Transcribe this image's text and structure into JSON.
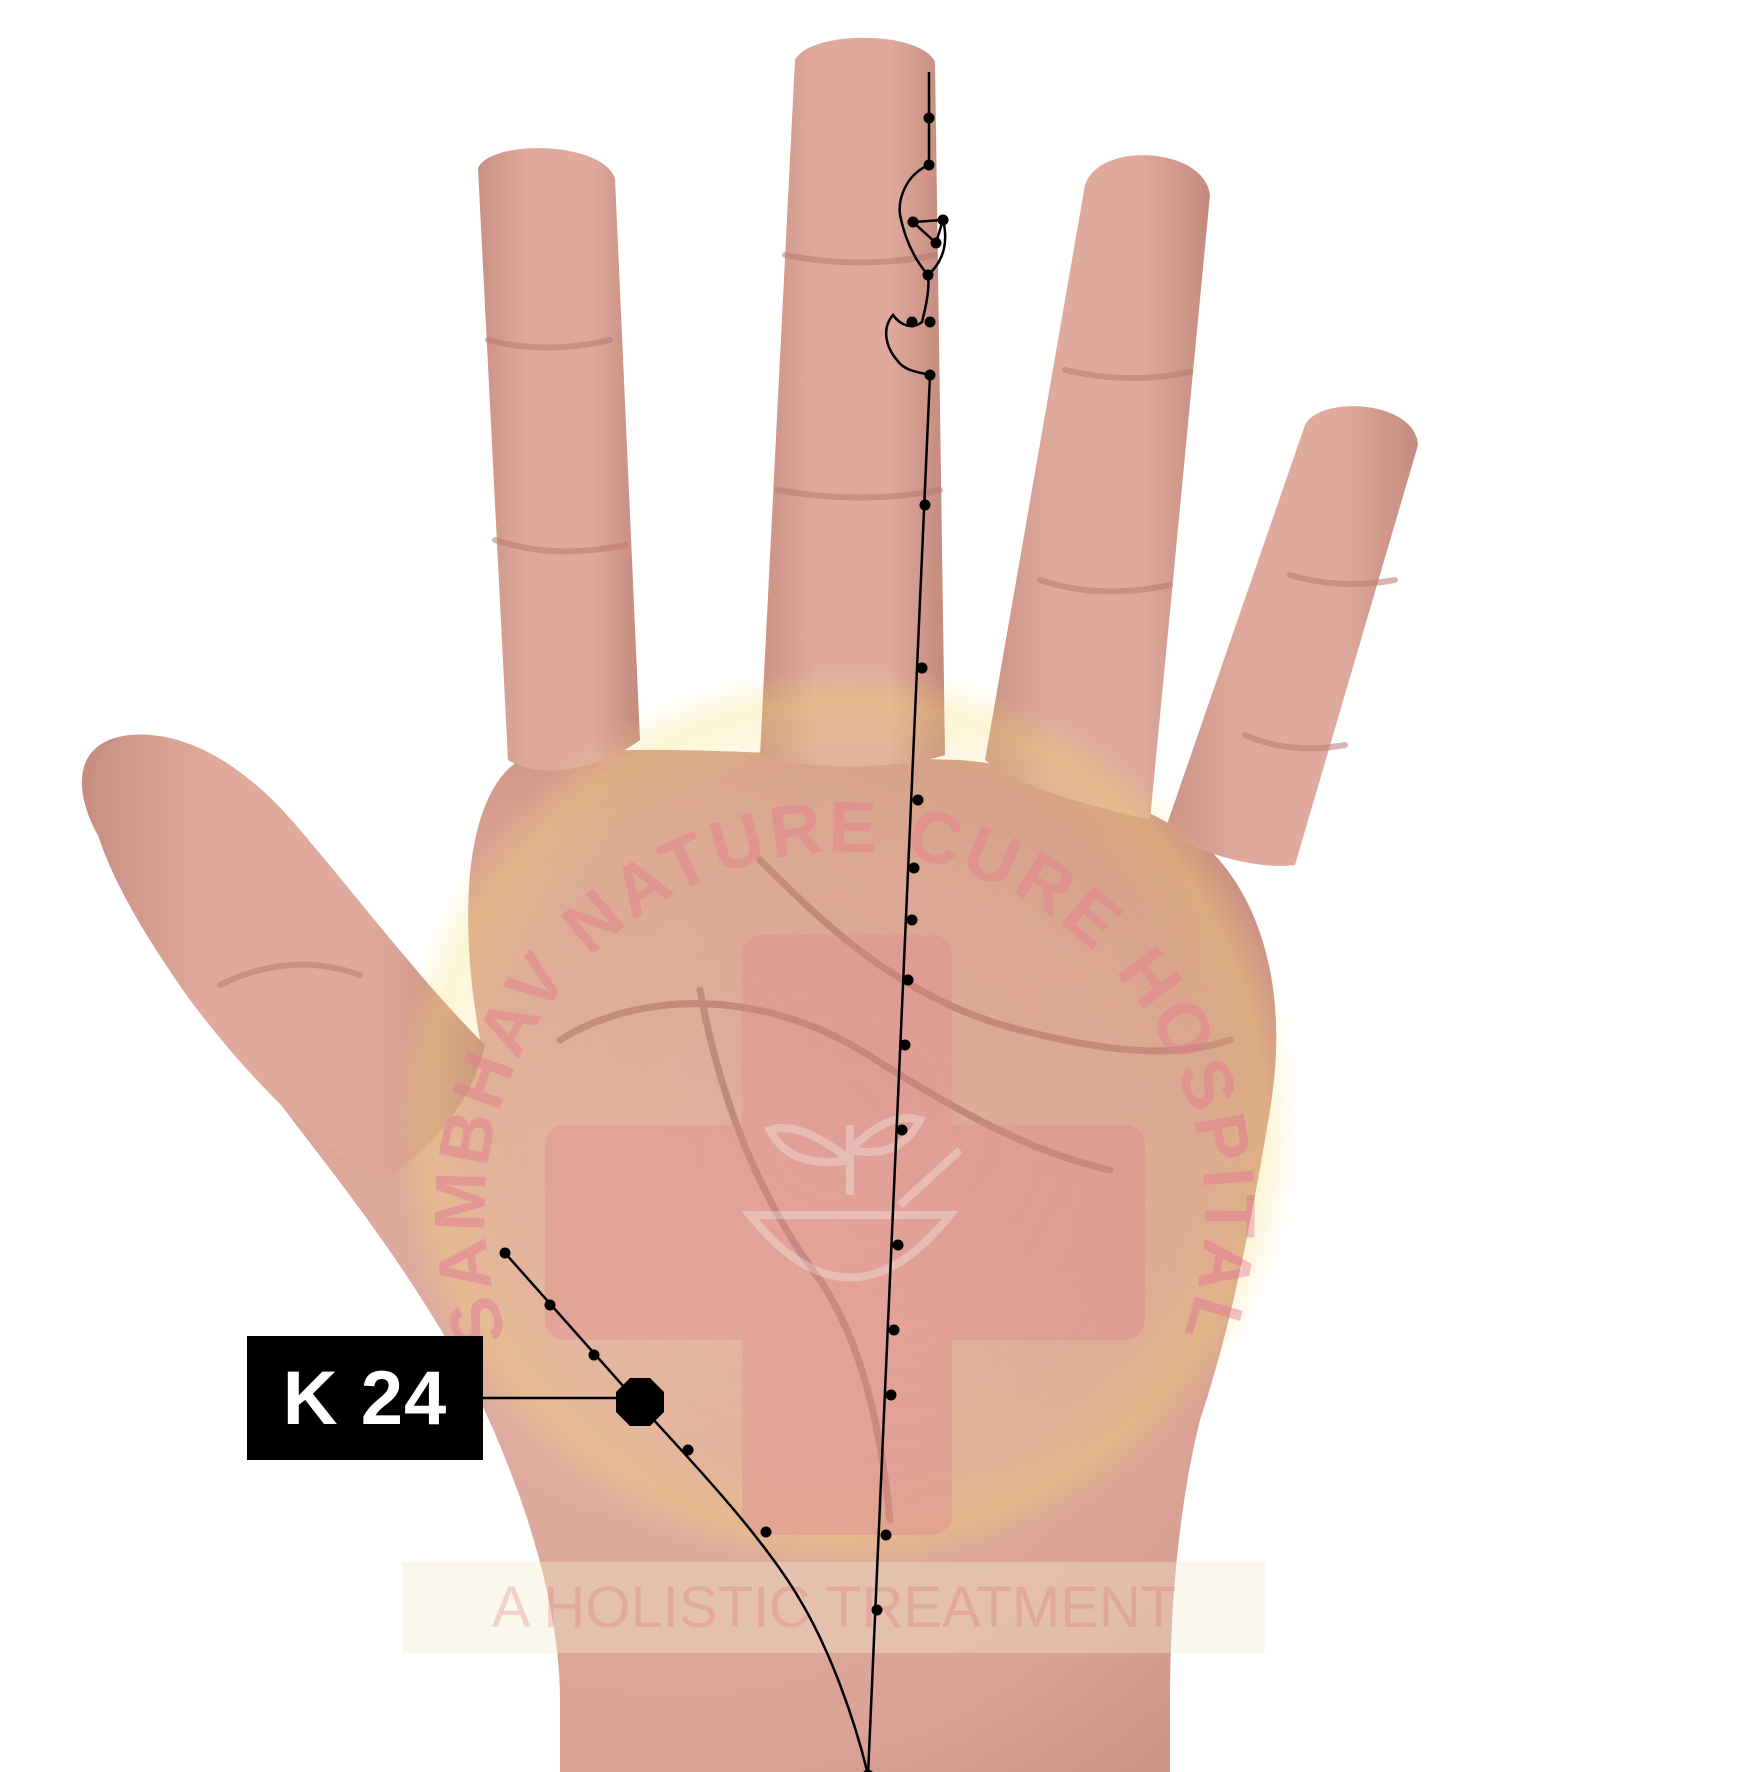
{
  "point_label": "K 24",
  "watermark": {
    "arc_text": "SAMBHAV NATURE CURE HOSPITAL",
    "tagline": "A HOLISTIC TREATMENT"
  },
  "colors": {
    "background": "#ffffff",
    "skin": "#dca79a",
    "skin_shadow": "#c48a7e",
    "crease": "#b57b72",
    "meridian_line": "#000000",
    "label_bg": "#000000",
    "label_text": "#ffffff",
    "watermark_yellow": "#f6e27a",
    "watermark_red": "#e9858a"
  }
}
